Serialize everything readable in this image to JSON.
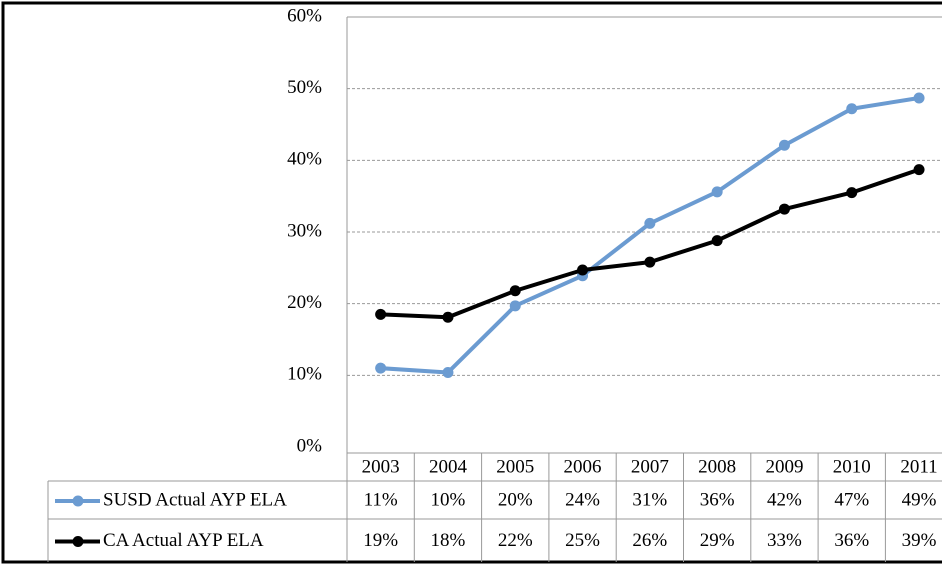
{
  "chart_data": {
    "type": "line",
    "categories": [
      "2003",
      "2004",
      "2005",
      "2006",
      "2007",
      "2008",
      "2009",
      "2010",
      "2011"
    ],
    "series": [
      {
        "name": "SUSD Actual AYP ELA",
        "color": "#6b9bd1",
        "values": [
          11.0,
          10.4,
          19.7,
          23.9,
          31.2,
          35.6,
          42.1,
          47.2,
          48.7
        ],
        "value_labels": [
          "11%",
          "10%",
          "20%",
          "24%",
          "31%",
          "36%",
          "42%",
          "47%",
          "49%"
        ]
      },
      {
        "name": "CA Actual AYP ELA",
        "color": "#000000",
        "values": [
          18.5,
          18.1,
          21.8,
          24.7,
          25.8,
          28.8,
          33.2,
          35.5,
          38.7
        ],
        "value_labels": [
          "19%",
          "18%",
          "22%",
          "25%",
          "26%",
          "29%",
          "33%",
          "36%",
          "39%"
        ]
      }
    ],
    "ylim": [
      0,
      60
    ],
    "yticks": [
      {
        "value": 0,
        "label": "0%"
      },
      {
        "value": 10,
        "label": "10%"
      },
      {
        "value": 20,
        "label": "20%"
      },
      {
        "value": 30,
        "label": "30%"
      },
      {
        "value": 40,
        "label": "40%"
      },
      {
        "value": 50,
        "label": "50%"
      },
      {
        "value": 60,
        "label": "60%"
      }
    ],
    "grid": true,
    "data_table": true
  }
}
